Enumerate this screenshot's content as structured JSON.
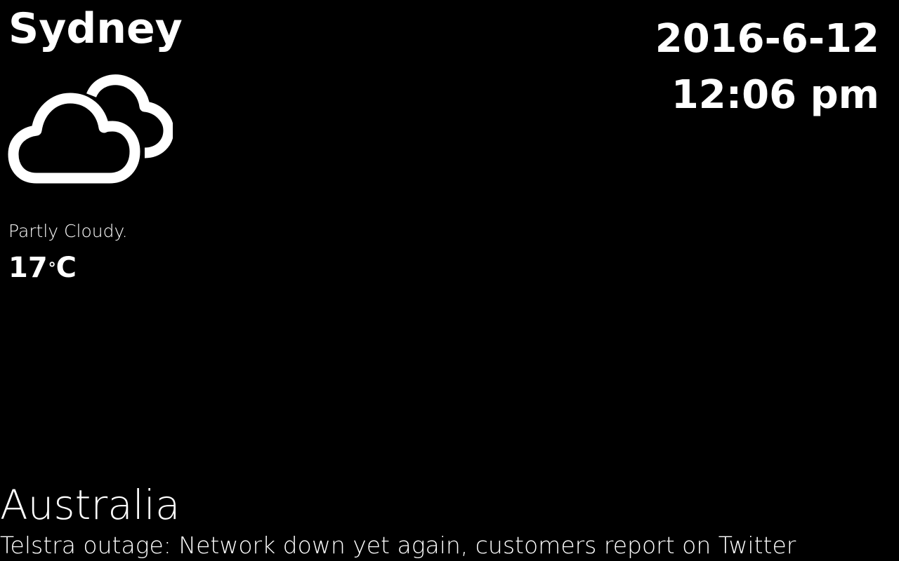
{
  "weather": {
    "city": "Sydney",
    "icon": "partly-cloudy-icon",
    "condition": "Partly Cloudy.",
    "temperature_value": "17",
    "temperature_degree": "°",
    "temperature_unit": "C"
  },
  "clock": {
    "date": "2016-6-12",
    "time": "12:06 pm"
  },
  "news": {
    "region": "Australia",
    "headline": "Telstra outage: Network down yet again, customers report on Twitter"
  },
  "colors": {
    "background": "#000000",
    "foreground": "#ffffff"
  }
}
